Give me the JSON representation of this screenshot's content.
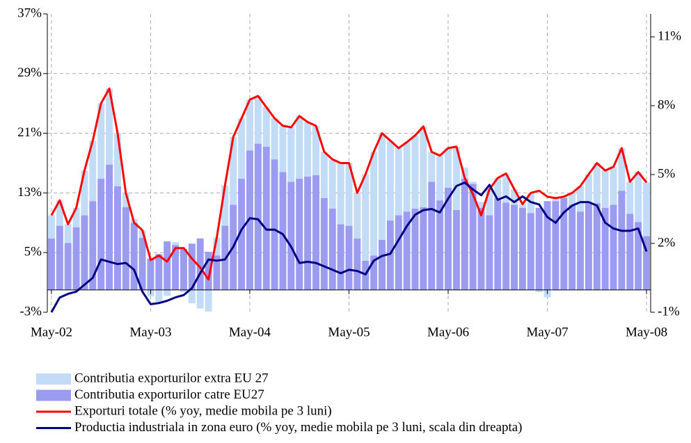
{
  "chart_data": {
    "type": "bar-line",
    "categories": [
      "May-02",
      null,
      null,
      null,
      null,
      null,
      null,
      null,
      null,
      null,
      null,
      null,
      "May-03",
      null,
      null,
      null,
      null,
      null,
      null,
      null,
      null,
      null,
      null,
      null,
      "May-04",
      null,
      null,
      null,
      null,
      null,
      null,
      null,
      null,
      null,
      null,
      null,
      "May-05",
      null,
      null,
      null,
      null,
      null,
      null,
      null,
      null,
      null,
      null,
      null,
      "May-06",
      null,
      null,
      null,
      null,
      null,
      null,
      null,
      null,
      null,
      null,
      null,
      "May-07",
      null,
      null,
      null,
      null,
      null,
      null,
      null,
      null,
      null,
      null,
      null,
      "May-08"
    ],
    "ylim": [
      -3,
      37
    ],
    "yticks": [
      {
        "value": -3,
        "label": "-3%"
      },
      {
        "value": 5,
        "label": "5%"
      },
      {
        "value": 13,
        "label": "13%"
      },
      {
        "value": 21,
        "label": "21%"
      },
      {
        "value": 29,
        "label": "29%"
      },
      {
        "value": 37,
        "label": "37%"
      }
    ],
    "y2lim": [
      -1,
      12
    ],
    "y2ticks": [
      {
        "value": -1,
        "label": "-1%"
      },
      {
        "value": 2,
        "label": "2%"
      },
      {
        "value": 5,
        "label": "5%"
      },
      {
        "value": 8,
        "label": "8%"
      },
      {
        "value": 11,
        "label": "11%"
      }
    ],
    "grid": true,
    "stacked": true,
    "series": [
      {
        "name": "Contributia exporturilor extra EU 27",
        "type": "bar",
        "color": "#c2dcf7",
        "values": [
          3.1,
          3.4,
          2.5,
          2.6,
          6,
          8.1,
          10.1,
          10.2,
          7.1,
          1.9,
          0.5,
          1,
          -0.9,
          -1.7,
          -0.8,
          0.4,
          -0.3,
          -1.8,
          -2.5,
          -2.9,
          2.4,
          5.4,
          9.1,
          8.1,
          6.8,
          6.4,
          5.3,
          5.5,
          6.2,
          7.3,
          8.4,
          7.3,
          6.6,
          6.2,
          6.6,
          8.2,
          8.4,
          6.1,
          11.6,
          13.9,
          14.3,
          10.7,
          9,
          9.3,
          9.8,
          10.8,
          4,
          6,
          5.3,
          8.5,
          1.5,
          0.3,
          0.8,
          3.5,
          2.7,
          3.9,
          2.1,
          0.5,
          2.7,
          -0.3,
          -1,
          0.4,
          0.2,
          1.6,
          3.4,
          3.9,
          5.4,
          5,
          5.1,
          5.7,
          4.3,
          6.7,
          7.2
        ]
      },
      {
        "name": "Contributia exporturilor catre EU27",
        "type": "bar",
        "color": "#9b9bef",
        "values": [
          6.9,
          8.6,
          6.3,
          8.4,
          10,
          11.9,
          14.9,
          16.8,
          13.9,
          11.1,
          9,
          7,
          4.2,
          4.8,
          6.5,
          6,
          5.5,
          6.2,
          6.9,
          5.1,
          4.6,
          8.6,
          11.4,
          14.9,
          18.7,
          19.6,
          19.2,
          17.5,
          15.8,
          14.5,
          14.9,
          15.2,
          15.4,
          12.3,
          10.9,
          8.8,
          8.6,
          6.9,
          3.9,
          4.6,
          6.7,
          9.3,
          10,
          10.5,
          10.9,
          11.1,
          14.5,
          12,
          13.7,
          10.7,
          14.9,
          14.2,
          11,
          10,
          12.3,
          11.7,
          11.4,
          11,
          10.3,
          11,
          11.9,
          11.9,
          12.3,
          11.4,
          10.5,
          11.6,
          11.6,
          11,
          11.4,
          13.3,
          10.2,
          9.1,
          7.2
        ]
      },
      {
        "name": "Exporturi totale (% yoy, medie mobila pe 3 luni)",
        "type": "line",
        "color": "#ff0000",
        "values": [
          10,
          12,
          8.8,
          11,
          16,
          20,
          25,
          27,
          21,
          13,
          9,
          8,
          4,
          4.6,
          3.8,
          5.6,
          5.6,
          4.2,
          3,
          1.4,
          7,
          14,
          20.5,
          23,
          25.5,
          26,
          24.5,
          23,
          22,
          21.8,
          23.3,
          22.5,
          22,
          18.5,
          17.5,
          17,
          17,
          13,
          15.5,
          18.5,
          21,
          20,
          19,
          19.8,
          20.7,
          21.9,
          18.5,
          18,
          19,
          19.2,
          15,
          12.8,
          10,
          13.5,
          15,
          15.6,
          13.5,
          11.5,
          13,
          13.3,
          12.5,
          12.3,
          12.5,
          13,
          13.9,
          15.5,
          17,
          16,
          16.5,
          19,
          14.5,
          15.8,
          14.4
        ]
      },
      {
        "name": "Productia industriala in zona euro (% yoy, medie mobila pe 3 luni, scala din dreapta)",
        "type": "line",
        "axis": "y2",
        "color": "#000080",
        "values": [
          -1,
          -0.36,
          -0.2,
          -0.1,
          0.2,
          0.5,
          1.3,
          1.2,
          1.1,
          1.15,
          0.85,
          -0.1,
          -0.65,
          -0.6,
          -0.5,
          -0.35,
          -0.25,
          0.05,
          0.7,
          1.3,
          1.25,
          1.3,
          1.85,
          2.6,
          3.1,
          3.05,
          2.6,
          2.6,
          2.4,
          1.85,
          1.15,
          1.2,
          1.15,
          1,
          0.85,
          0.7,
          0.85,
          0.8,
          0.65,
          1.25,
          1.45,
          1.55,
          2.15,
          2.75,
          3.25,
          3.45,
          3.5,
          3.35,
          3.95,
          4.5,
          4.65,
          4.35,
          4.1,
          4.55,
          3.9,
          4.05,
          3.8,
          4.05,
          3.8,
          3.7,
          3.15,
          2.9,
          3.35,
          3.65,
          3.8,
          3.8,
          3.65,
          2.9,
          2.65,
          2.55,
          2.55,
          2.65,
          1.65
        ]
      }
    ]
  }
}
